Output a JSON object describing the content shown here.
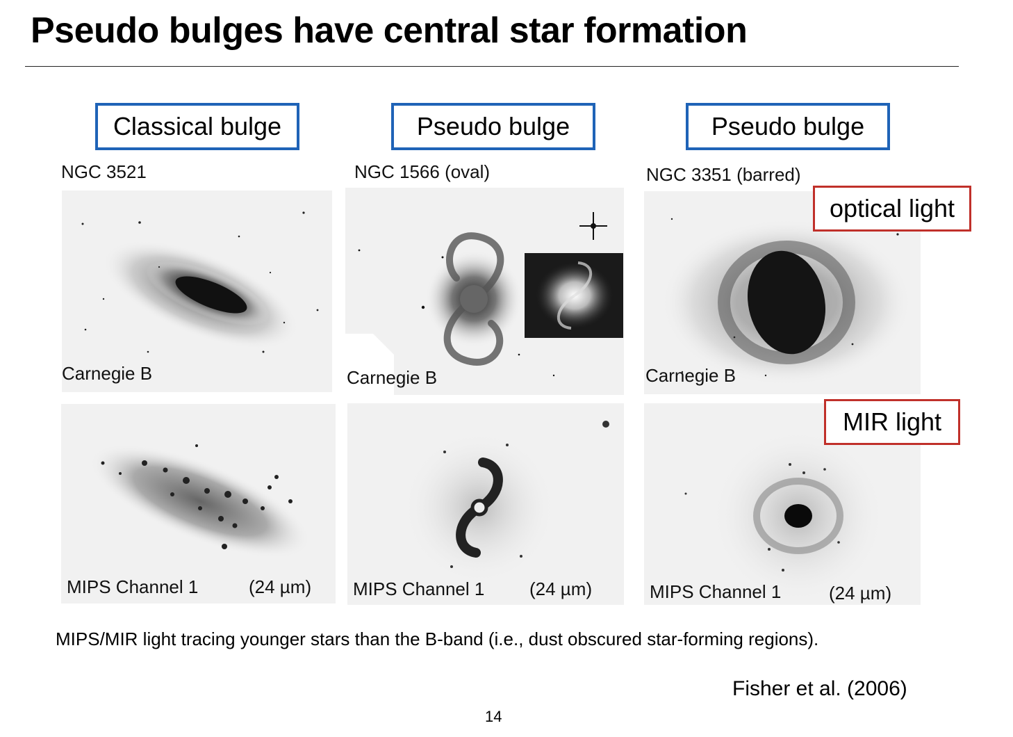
{
  "slide": {
    "title": "Pseudo bulges have central star formation",
    "note": "MIPS/MIR light tracing younger stars than the B-band (i.e., dust obscured star-forming regions).",
    "citation": "Fisher et al. (2006)",
    "page_number": "14"
  },
  "columns": [
    {
      "header": "Classical bulge",
      "galaxy": "NGC 3521",
      "optical_caption": "Carnegie B",
      "mips_channel": "MIPS Channel 1",
      "mips_band": "(24 µm)"
    },
    {
      "header": "Pseudo bulge",
      "galaxy": "NGC 1566  (oval)",
      "optical_caption": "Carnegie B",
      "mips_channel": "MIPS Channel 1",
      "mips_band": "(24 µm)"
    },
    {
      "header": "Pseudo bulge",
      "galaxy": "NGC 3351  (barred)",
      "optical_caption": "Carnegie B",
      "mips_channel": "MIPS Channel 1",
      "mips_band": "(24 µm)"
    }
  ],
  "row_labels": {
    "optical": "optical light",
    "mir": "MIR light"
  },
  "colors": {
    "header_box_border": "#1f63b7",
    "row_label_border": "#c0302a"
  }
}
